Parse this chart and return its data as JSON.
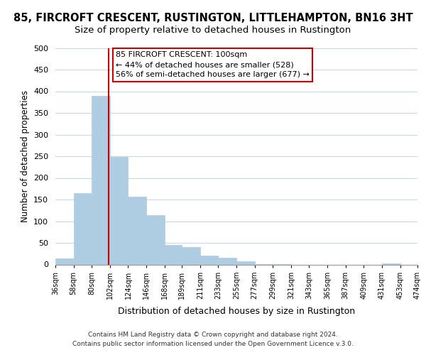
{
  "title": "85, FIRCROFT CRESCENT, RUSTINGTON, LITTLEHAMPTON, BN16 3HT",
  "subtitle": "Size of property relative to detached houses in Rustington",
  "xlabel": "Distribution of detached houses by size in Rustington",
  "ylabel": "Number of detached properties",
  "bar_color": "#aecde3",
  "bar_edge_color": "#aecde3",
  "reference_line_x": 100,
  "reference_line_color": "#cc0000",
  "annotation_line1": "85 FIRCROFT CRESCENT: 100sqm",
  "annotation_line2": "← 44% of detached houses are smaller (528)",
  "annotation_line3": "56% of semi-detached houses are larger (677) →",
  "annotation_box_color": "#ffffff",
  "annotation_box_edge_color": "#cc0000",
  "footer_line1": "Contains HM Land Registry data © Crown copyright and database right 2024.",
  "footer_line2": "Contains public sector information licensed under the Open Government Licence v.3.0.",
  "bin_edges": [
    36,
    58,
    80,
    102,
    124,
    146,
    168,
    189,
    211,
    233,
    255,
    277,
    299,
    321,
    343,
    365,
    387,
    409,
    431,
    453,
    474
  ],
  "bin_labels": [
    "36sqm",
    "58sqm",
    "80sqm",
    "102sqm",
    "124sqm",
    "146sqm",
    "168sqm",
    "189sqm",
    "211sqm",
    "233sqm",
    "255sqm",
    "277sqm",
    "299sqm",
    "321sqm",
    "343sqm",
    "365sqm",
    "387sqm",
    "409sqm",
    "431sqm",
    "453sqm",
    "474sqm"
  ],
  "bar_heights": [
    14,
    165,
    390,
    248,
    157,
    114,
    45,
    40,
    21,
    16,
    7,
    1,
    1,
    0,
    0,
    0,
    0,
    0,
    2,
    0,
    0
  ],
  "ylim": [
    0,
    500
  ],
  "yticks": [
    0,
    50,
    100,
    150,
    200,
    250,
    300,
    350,
    400,
    450,
    500
  ],
  "background_color": "#ffffff",
  "grid_color": "#c8d8e8",
  "title_fontsize": 10.5,
  "subtitle_fontsize": 9.5
}
